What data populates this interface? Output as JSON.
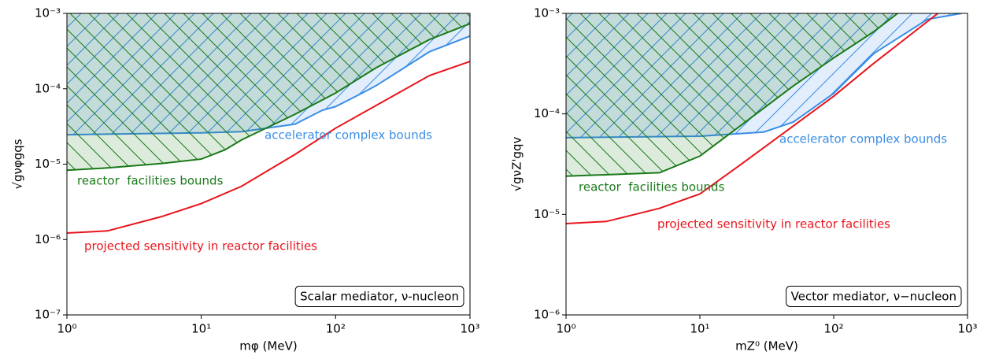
{
  "chart_data": [
    {
      "type": "line",
      "xlabel": "mφ (MeV)",
      "ylabel": "√gνφgqs",
      "xscale": "log",
      "yscale": "log",
      "xlim": [
        1,
        1000
      ],
      "ylim": [
        1e-07,
        0.001
      ],
      "xticks": [
        {
          "value": 1,
          "label": "10⁰"
        },
        {
          "value": 10,
          "label": "10¹"
        },
        {
          "value": 100,
          "label": "10²"
        },
        {
          "value": 1000,
          "label": "10³"
        }
      ],
      "yticks": [
        {
          "value": 1e-07,
          "label": "10⁻⁷"
        },
        {
          "value": 1e-06,
          "label": "10⁻⁶"
        },
        {
          "value": 1e-05,
          "label": "10⁻⁵"
        },
        {
          "value": 0.0001,
          "label": "10⁻⁴"
        },
        {
          "value": 0.001,
          "label": "10⁻³"
        }
      ],
      "note": "Scalar mediator, ν-nucleon",
      "series": [
        {
          "name": "accelerator complex bounds",
          "color": "#3a8ee6",
          "fill_above": true,
          "x": [
            1,
            10,
            20,
            50,
            80,
            100,
            160,
            200,
            500,
            1000
          ],
          "values": [
            2.46e-05,
            2.6e-05,
            2.7e-05,
            3.4e-05,
            5.2e-05,
            5.8e-05,
            8.9e-05,
            0.00011,
            0.00031,
            0.0005
          ]
        },
        {
          "name": "reactor  facilities bounds",
          "color": "#1a7a1a",
          "fill_above": true,
          "x": [
            1,
            2,
            5,
            10,
            15,
            20,
            50,
            100,
            200,
            500,
            1000
          ],
          "values": [
            8.3e-06,
            8.9e-06,
            1.02e-05,
            1.17e-05,
            1.55e-05,
            2.1e-05,
            4.6e-05,
            8.8e-05,
            0.00019,
            0.00045,
            0.00073
          ]
        },
        {
          "name": "projected sensitivity in reactor facilities",
          "color": "#e8141c",
          "fill_above": false,
          "x": [
            1,
            2,
            5,
            10,
            20,
            50,
            100,
            200,
            500,
            1000
          ],
          "values": [
            1.22e-06,
            1.3e-06,
            2e-06,
            3e-06,
            5.1e-06,
            1.35e-05,
            3e-05,
            6e-05,
            0.00015,
            0.00023
          ]
        }
      ]
    },
    {
      "type": "line",
      "xlabel": "mZ⁰ (MeV)",
      "ylabel": "√gνZ'gqv",
      "xscale": "log",
      "yscale": "log",
      "xlim": [
        1,
        1000
      ],
      "ylim": [
        1e-06,
        0.001
      ],
      "xticks": [
        {
          "value": 1,
          "label": "10⁰"
        },
        {
          "value": 10,
          "label": "10¹"
        },
        {
          "value": 100,
          "label": "10²"
        },
        {
          "value": 1000,
          "label": "10³"
        }
      ],
      "yticks": [
        {
          "value": 1e-06,
          "label": "10⁻⁶"
        },
        {
          "value": 1e-05,
          "label": "10⁻⁵"
        },
        {
          "value": 0.0001,
          "label": "10⁻⁴"
        },
        {
          "value": 0.001,
          "label": "10⁻³"
        }
      ],
      "note": "Vector mediator, ν−nucleon",
      "series": [
        {
          "name": "accelerator complex bounds",
          "color": "#3a8ee6",
          "fill_above": true,
          "x": [
            1,
            10,
            30,
            50,
            100,
            200,
            500,
            900
          ],
          "values": [
            5.8e-05,
            6e-05,
            6.6e-05,
            8.3e-05,
            0.00016,
            0.0004,
            0.00087,
            0.001
          ]
        },
        {
          "name": "reactor  facilities bounds",
          "color": "#1a7a1a",
          "fill_above": true,
          "x": [
            1,
            5,
            10,
            20,
            50,
            100,
            200,
            300
          ],
          "values": [
            2.4e-05,
            2.6e-05,
            3.8e-05,
            7.6e-05,
            0.00019,
            0.00036,
            0.00066,
            0.001
          ]
        },
        {
          "name": "projected sensitivity in reactor facilities",
          "color": "#e8141c",
          "fill_above": false,
          "x": [
            1,
            2,
            5,
            10,
            20,
            50,
            100,
            200,
            600
          ],
          "values": [
            8.1e-06,
            8.5e-06,
            1.15e-05,
            1.6e-05,
            3.1e-05,
            7.6e-05,
            0.00015,
            0.00032,
            0.001
          ]
        }
      ]
    }
  ]
}
